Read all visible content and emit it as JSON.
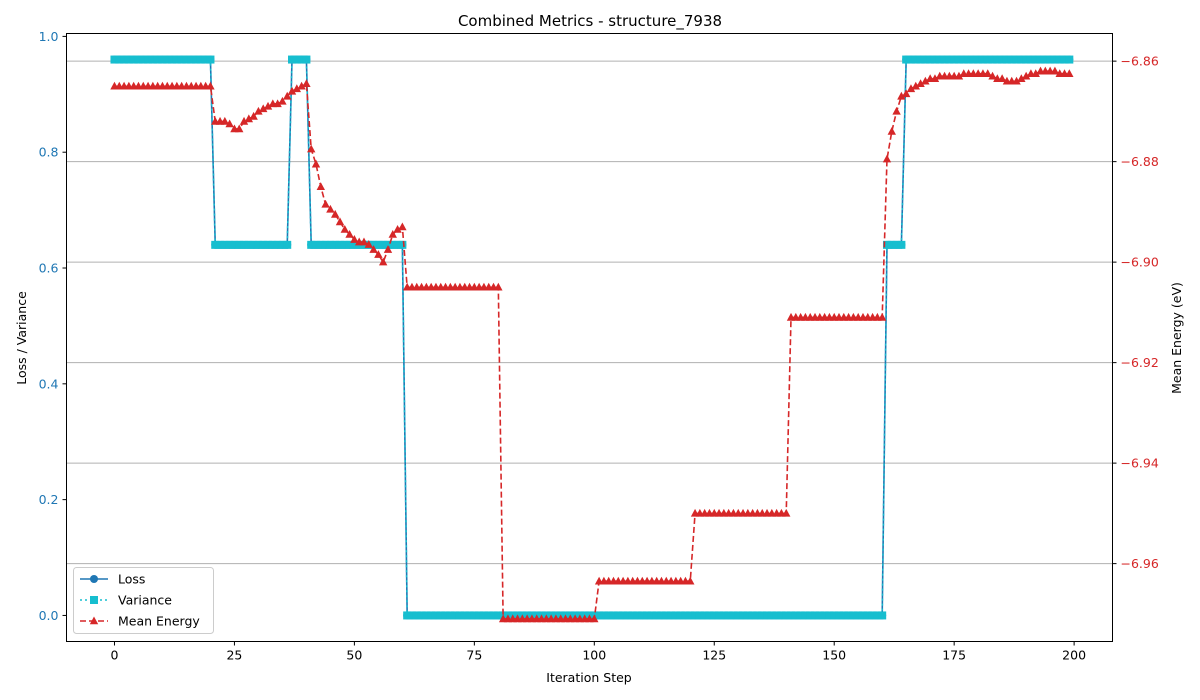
{
  "chart_data": {
    "type": "line",
    "title": "Combined Metrics - structure_7938",
    "xlabel": "Iteration Step",
    "ylabel_left": "Loss / Variance",
    "ylabel_right": "Mean Energy (eV)",
    "xlim": [
      -10,
      208
    ],
    "ylim_left": [
      -0.045,
      1.005
    ],
    "ylim_right": [
      -6.9755,
      -6.8545
    ],
    "xticks": [
      0,
      25,
      50,
      75,
      100,
      125,
      150,
      175,
      200
    ],
    "yticks_left": [
      0.0,
      0.2,
      0.4,
      0.6,
      0.8,
      1.0
    ],
    "yticks_right": [
      -6.96,
      -6.94,
      -6.92,
      -6.9,
      -6.88,
      -6.86
    ],
    "grid": "right-axis horizontal",
    "legend_position": "lower left",
    "colors": {
      "loss": "#1f77b4",
      "variance": "#17becf",
      "energy": "#d62728",
      "left_axis": "#1f77b4",
      "right_axis": "#d62728"
    },
    "series": [
      {
        "name": "Loss",
        "axis": "left",
        "style": "solid-circle",
        "segments": [
          {
            "from": 0,
            "to": 20,
            "value": 0.96
          },
          {
            "from": 21,
            "to": 36,
            "value": 0.64
          },
          {
            "from": 37,
            "to": 40,
            "value": 0.96
          },
          {
            "from": 41,
            "to": 60,
            "value": 0.64
          },
          {
            "from": 61,
            "to": 160,
            "value": 0.0
          },
          {
            "from": 161,
            "to": 164,
            "value": 0.64
          },
          {
            "from": 165,
            "to": 199,
            "value": 0.96
          }
        ]
      },
      {
        "name": "Variance",
        "axis": "left",
        "style": "dotted-square",
        "segments": [
          {
            "from": 0,
            "to": 20,
            "value": 0.96
          },
          {
            "from": 21,
            "to": 36,
            "value": 0.64
          },
          {
            "from": 37,
            "to": 40,
            "value": 0.96
          },
          {
            "from": 41,
            "to": 60,
            "value": 0.64
          },
          {
            "from": 61,
            "to": 160,
            "value": 0.0
          },
          {
            "from": 161,
            "to": 164,
            "value": 0.64
          },
          {
            "from": 165,
            "to": 199,
            "value": 0.96
          }
        ]
      },
      {
        "name": "Mean Energy",
        "axis": "right",
        "style": "dashed-triangle",
        "segments": [
          {
            "from": 0,
            "to": 20,
            "value": -6.865
          },
          {
            "from": 81,
            "to": 100,
            "value": -6.971
          },
          {
            "from": 101,
            "to": 120,
            "value": -6.9635
          },
          {
            "from": 121,
            "to": 140,
            "value": -6.95
          },
          {
            "from": 141,
            "to": 160,
            "value": -6.911
          },
          {
            "from": 61,
            "to": 80,
            "value": -6.905
          }
        ],
        "points": [
          [
            21,
            -6.872
          ],
          [
            22,
            -6.872
          ],
          [
            23,
            -6.872
          ],
          [
            24,
            -6.8725
          ],
          [
            25,
            -6.8735
          ],
          [
            26,
            -6.8735
          ],
          [
            27,
            -6.872
          ],
          [
            28,
            -6.8715
          ],
          [
            29,
            -6.871
          ],
          [
            30,
            -6.87
          ],
          [
            31,
            -6.8695
          ],
          [
            32,
            -6.869
          ],
          [
            33,
            -6.8685
          ],
          [
            34,
            -6.8685
          ],
          [
            35,
            -6.868
          ],
          [
            36,
            -6.867
          ],
          [
            37,
            -6.866
          ],
          [
            38,
            -6.8655
          ],
          [
            39,
            -6.865
          ],
          [
            40,
            -6.8645
          ],
          [
            41,
            -6.8775
          ],
          [
            42,
            -6.8805
          ],
          [
            43,
            -6.885
          ],
          [
            44,
            -6.8885
          ],
          [
            45,
            -6.8895
          ],
          [
            46,
            -6.8905
          ],
          [
            47,
            -6.892
          ],
          [
            48,
            -6.8935
          ],
          [
            49,
            -6.8945
          ],
          [
            50,
            -6.8955
          ],
          [
            51,
            -6.896
          ],
          [
            52,
            -6.896
          ],
          [
            53,
            -6.8965
          ],
          [
            54,
            -6.8975
          ],
          [
            55,
            -6.8985
          ],
          [
            56,
            -6.9
          ],
          [
            57,
            -6.8975
          ],
          [
            58,
            -6.8945
          ],
          [
            59,
            -6.8935
          ],
          [
            60,
            -6.893
          ],
          [
            161,
            -6.8795
          ],
          [
            162,
            -6.874
          ],
          [
            163,
            -6.87
          ],
          [
            164,
            -6.867
          ],
          [
            165,
            -6.8665
          ],
          [
            166,
            -6.8655
          ],
          [
            167,
            -6.865
          ],
          [
            168,
            -6.8645
          ],
          [
            169,
            -6.864
          ],
          [
            170,
            -6.8635
          ],
          [
            171,
            -6.8635
          ],
          [
            172,
            -6.863
          ],
          [
            173,
            -6.863
          ],
          [
            174,
            -6.863
          ],
          [
            175,
            -6.863
          ],
          [
            176,
            -6.863
          ],
          [
            177,
            -6.8625
          ],
          [
            178,
            -6.8625
          ],
          [
            179,
            -6.8625
          ],
          [
            180,
            -6.8625
          ],
          [
            181,
            -6.8625
          ],
          [
            182,
            -6.8625
          ],
          [
            183,
            -6.863
          ],
          [
            184,
            -6.8635
          ],
          [
            185,
            -6.8635
          ],
          [
            186,
            -6.864
          ],
          [
            187,
            -6.864
          ],
          [
            188,
            -6.864
          ],
          [
            189,
            -6.8635
          ],
          [
            190,
            -6.863
          ],
          [
            191,
            -6.8625
          ],
          [
            192,
            -6.8625
          ],
          [
            193,
            -6.862
          ],
          [
            194,
            -6.862
          ],
          [
            195,
            -6.862
          ],
          [
            196,
            -6.862
          ],
          [
            197,
            -6.8625
          ],
          [
            198,
            -6.8625
          ],
          [
            199,
            -6.8625
          ]
        ]
      }
    ]
  }
}
